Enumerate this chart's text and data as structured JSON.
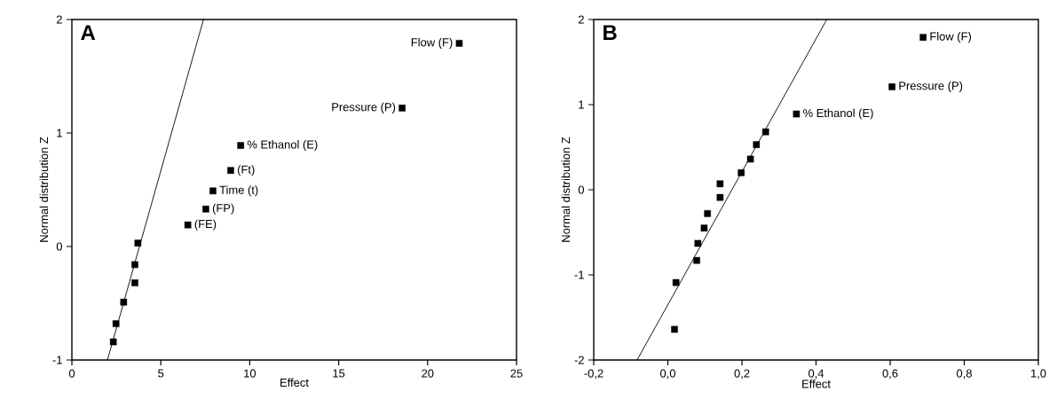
{
  "chart_data": [
    {
      "type": "scatter",
      "title": "A",
      "xlabel": "Effect",
      "ylabel": "Normal distribution Z",
      "xlim": [
        0,
        25
      ],
      "ylim": [
        -1,
        2
      ],
      "xticks": [
        0,
        5,
        10,
        15,
        20,
        25
      ],
      "yticks": [
        -1,
        0,
        1,
        2
      ],
      "series": [
        {
          "color": "#000000",
          "marker": "square",
          "x": [
            2.33,
            2.48,
            2.91,
            3.54,
            3.54,
            3.71,
            6.52,
            7.53,
            7.93,
            8.93,
            9.49,
            18.57,
            21.78
          ],
          "values": [
            -0.84,
            -0.68,
            -0.49,
            -0.32,
            -0.16,
            0.03,
            0.19,
            0.33,
            0.49,
            0.67,
            0.89,
            1.22,
            1.79
          ]
        },
        {
          "type": "line",
          "color": "#000000",
          "marker": "none",
          "line_style": "solid",
          "x": [
            2.0,
            7.4
          ],
          "values": [
            -1,
            2
          ]
        }
      ],
      "annotations": [
        {
          "text": "Flow (F)",
          "x": 21.78,
          "y": 1.79
        },
        {
          "text": "Pressure (P)",
          "x": 18.57,
          "y": 1.22
        },
        {
          "text": "% Ethanol (E)",
          "x": 9.49,
          "y": 0.89
        },
        {
          "text": "(Ft)",
          "x": 8.93,
          "y": 0.67
        },
        {
          "text": "Time (t)",
          "x": 7.93,
          "y": 0.49
        },
        {
          "text": "(FP)",
          "x": 7.53,
          "y": 0.33
        },
        {
          "text": "(FE)",
          "x": 6.52,
          "y": 0.19
        }
      ]
    },
    {
      "type": "scatter",
      "title": "B",
      "xlabel": "Effect",
      "ylabel": "Normal distribution Z",
      "xlim": [
        -0.2,
        1.0
      ],
      "ylim": [
        -2,
        2
      ],
      "xticks": [
        {
          "value": -0.2,
          "label": "-0,2"
        },
        {
          "value": 0.0,
          "label": "0,0"
        },
        {
          "value": 0.2,
          "label": "0,2"
        },
        {
          "value": 0.4,
          "label": "0,4"
        },
        {
          "value": 0.6,
          "label": "0,6"
        },
        {
          "value": 0.8,
          "label": "0,8"
        },
        {
          "value": 1.0,
          "label": "1,0"
        }
      ],
      "yticks": [
        -2,
        -1,
        0,
        1,
        2
      ],
      "series": [
        {
          "color": "#000000",
          "marker": "square",
          "x": [
            0.018,
            0.022,
            0.078,
            0.081,
            0.098,
            0.107,
            0.141,
            0.141,
            0.198,
            0.223,
            0.239,
            0.264,
            0.347,
            0.605,
            0.689
          ],
          "values": [
            -1.64,
            -1.09,
            -0.83,
            -0.63,
            -0.45,
            -0.28,
            -0.09,
            0.07,
            0.2,
            0.36,
            0.53,
            0.68,
            0.89,
            1.21,
            1.79
          ]
        },
        {
          "type": "line",
          "color": "#000000",
          "marker": "none",
          "line_style": "solid",
          "x": [
            -0.083,
            0.429
          ],
          "values": [
            -2,
            2
          ]
        }
      ],
      "annotations": [
        {
          "text": "Flow (F)",
          "x": 0.689,
          "y": 1.79
        },
        {
          "text": "Pressure (P)",
          "x": 0.605,
          "y": 1.21
        },
        {
          "text": "% Ethanol (E)",
          "x": 0.347,
          "y": 0.89
        }
      ]
    }
  ]
}
